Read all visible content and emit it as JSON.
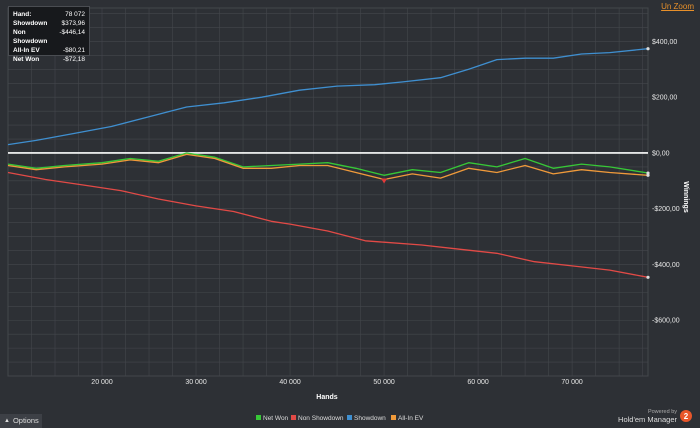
{
  "header": {
    "unzoom_label": "Un Zoom"
  },
  "stats": [
    {
      "label": "Hand:",
      "value": "78 072"
    },
    {
      "label": "Showdown",
      "value": "$373,96"
    },
    {
      "label": "Non Showdown",
      "value": "-$446,14"
    },
    {
      "label": "All-In EV",
      "value": "-$80,21"
    },
    {
      "label": "Net Won",
      "value": "-$72,18"
    }
  ],
  "footer": {
    "options_label": "Options",
    "powered_by": "Powered by",
    "product_name": "Hold'em Manager",
    "product_badge": "2"
  },
  "chart_data": {
    "type": "line",
    "xlabel": "Hands",
    "ylabel": "Winnings",
    "xlim": [
      10000,
      78072
    ],
    "ylim": [
      -800,
      520
    ],
    "xticks": [
      20000,
      30000,
      40000,
      50000,
      60000,
      70000
    ],
    "xtick_labels": [
      "20 000",
      "30 000",
      "40 000",
      "50 000",
      "60 000",
      "70 000"
    ],
    "yticks": [
      400,
      200,
      0,
      -200,
      -400,
      -600
    ],
    "ytick_labels": [
      "$400,00",
      "$200,00",
      "$0,00",
      "-$200,00",
      "-$400,00",
      "-$600,00"
    ],
    "grid": true,
    "legend_position": "bottom-center",
    "colors": {
      "background": "#2d3035",
      "grid": "#44474c",
      "zero_line": "#ffffff",
      "net_won": "#37c837",
      "non_showdown": "#e24a46",
      "showdown": "#3f8fd0",
      "allin_ev": "#f09a3a"
    },
    "series": [
      {
        "name": "Net Won",
        "color": "#37c837",
        "x": [
          10000,
          13000,
          16000,
          20000,
          23000,
          26000,
          29000,
          32000,
          35000,
          38000,
          41000,
          44000,
          47000,
          50000,
          53000,
          56000,
          59000,
          62000,
          65000,
          68000,
          71000,
          74000,
          78072
        ],
        "y": [
          -40,
          -55,
          -45,
          -35,
          -20,
          -30,
          0,
          -15,
          -50,
          -45,
          -40,
          -35,
          -55,
          -80,
          -60,
          -70,
          -35,
          -50,
          -20,
          -55,
          -40,
          -50,
          -72
        ]
      },
      {
        "name": "Non Showdown",
        "color": "#e24a46",
        "x": [
          10000,
          14000,
          18000,
          22000,
          26000,
          30000,
          34000,
          38000,
          40000,
          44000,
          48000,
          50000,
          54000,
          58000,
          62000,
          66000,
          70000,
          74000,
          78072
        ],
        "y": [
          -70,
          -95,
          -115,
          -135,
          -165,
          -190,
          -210,
          -245,
          -255,
          -280,
          -315,
          -320,
          -330,
          -345,
          -360,
          -390,
          -405,
          -420,
          -446
        ]
      },
      {
        "name": "Showdown",
        "color": "#3f8fd0",
        "x": [
          10000,
          13000,
          17000,
          21000,
          25000,
          29000,
          33000,
          37000,
          41000,
          45000,
          49000,
          52000,
          56000,
          59000,
          62000,
          65000,
          68000,
          71000,
          74000,
          78072
        ],
        "y": [
          30,
          45,
          70,
          95,
          130,
          165,
          180,
          200,
          225,
          240,
          245,
          255,
          270,
          300,
          335,
          340,
          340,
          355,
          360,
          374
        ]
      },
      {
        "name": "All-In EV",
        "color": "#f09a3a",
        "x": [
          10000,
          13000,
          16000,
          20000,
          23000,
          26000,
          29000,
          32000,
          35000,
          38000,
          41000,
          44000,
          47000,
          50000,
          53000,
          56000,
          59000,
          62000,
          65000,
          68000,
          71000,
          74000,
          78072
        ],
        "y": [
          -45,
          -60,
          -50,
          -40,
          -25,
          -35,
          -5,
          -20,
          -55,
          -55,
          -45,
          -45,
          -70,
          -95,
          -75,
          -90,
          -55,
          -70,
          -45,
          -75,
          -60,
          -70,
          -80
        ]
      }
    ]
  }
}
